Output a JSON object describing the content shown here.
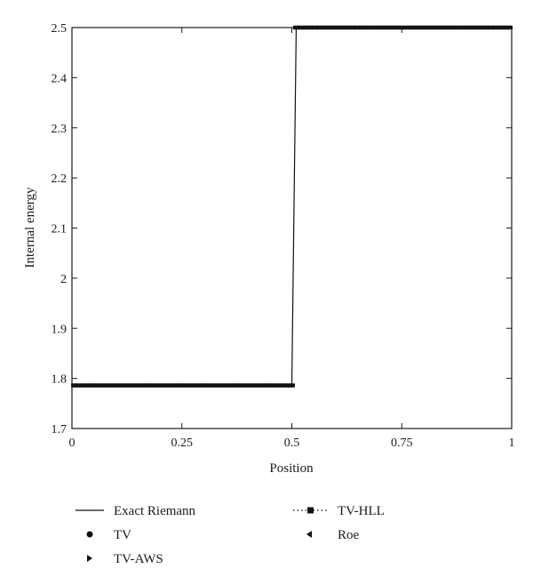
{
  "chart_data": {
    "type": "line",
    "title": "",
    "xlabel": "Position",
    "ylabel": "Internal energy",
    "xlim": [
      0,
      1
    ],
    "ylim": [
      1.7,
      2.5
    ],
    "xticks": [
      0,
      0.25,
      0.5,
      0.75,
      1
    ],
    "xtick_labels": [
      "0",
      "0.25",
      "0.5",
      "0.75",
      "1"
    ],
    "yticks": [
      1.7,
      1.8,
      1.9,
      2.0,
      2.1,
      2.2,
      2.3,
      2.4,
      2.5
    ],
    "ytick_labels": [
      "1.7",
      "1.8",
      "1.9",
      "2",
      "2.1",
      "2.2",
      "2.3",
      "2.4",
      "2.5"
    ],
    "grid": false,
    "legend_position": "bottom",
    "series": [
      {
        "name": "Exact Riemann",
        "style": "solid-line",
        "x": [
          0,
          0.5,
          0.51,
          1
        ],
        "y": [
          1.786,
          1.786,
          2.5,
          2.5
        ]
      },
      {
        "name": "TV",
        "style": "circle-marker",
        "x_range": [
          0,
          1
        ],
        "n_points": 200,
        "left_value": 1.786,
        "right_value": 2.5,
        "jump_at": 0.505
      },
      {
        "name": "TV-AWS",
        "style": "triangle-right-marker",
        "x_range": [
          0,
          1
        ],
        "n_points": 200,
        "left_value": 1.786,
        "right_value": 2.5,
        "jump_at": 0.505
      },
      {
        "name": "TV-HLL",
        "style": "square-dotted",
        "x_range": [
          0,
          1
        ],
        "n_points": 200,
        "left_value": 1.786,
        "right_value": 2.5,
        "jump_at": 0.505
      },
      {
        "name": "Roe",
        "style": "triangle-left-marker",
        "x_range": [
          0,
          1
        ],
        "n_points": 200,
        "left_value": 1.786,
        "right_value": 2.5,
        "jump_at": 0.505
      }
    ],
    "legend": [
      {
        "label": "Exact Riemann",
        "symbol": "line"
      },
      {
        "label": "TV",
        "symbol": "circle"
      },
      {
        "label": "TV-AWS",
        "symbol": "triangle-right"
      },
      {
        "label": "TV-HLL",
        "symbol": "square-dotted"
      },
      {
        "label": "Roe",
        "symbol": "triangle-left"
      }
    ]
  }
}
